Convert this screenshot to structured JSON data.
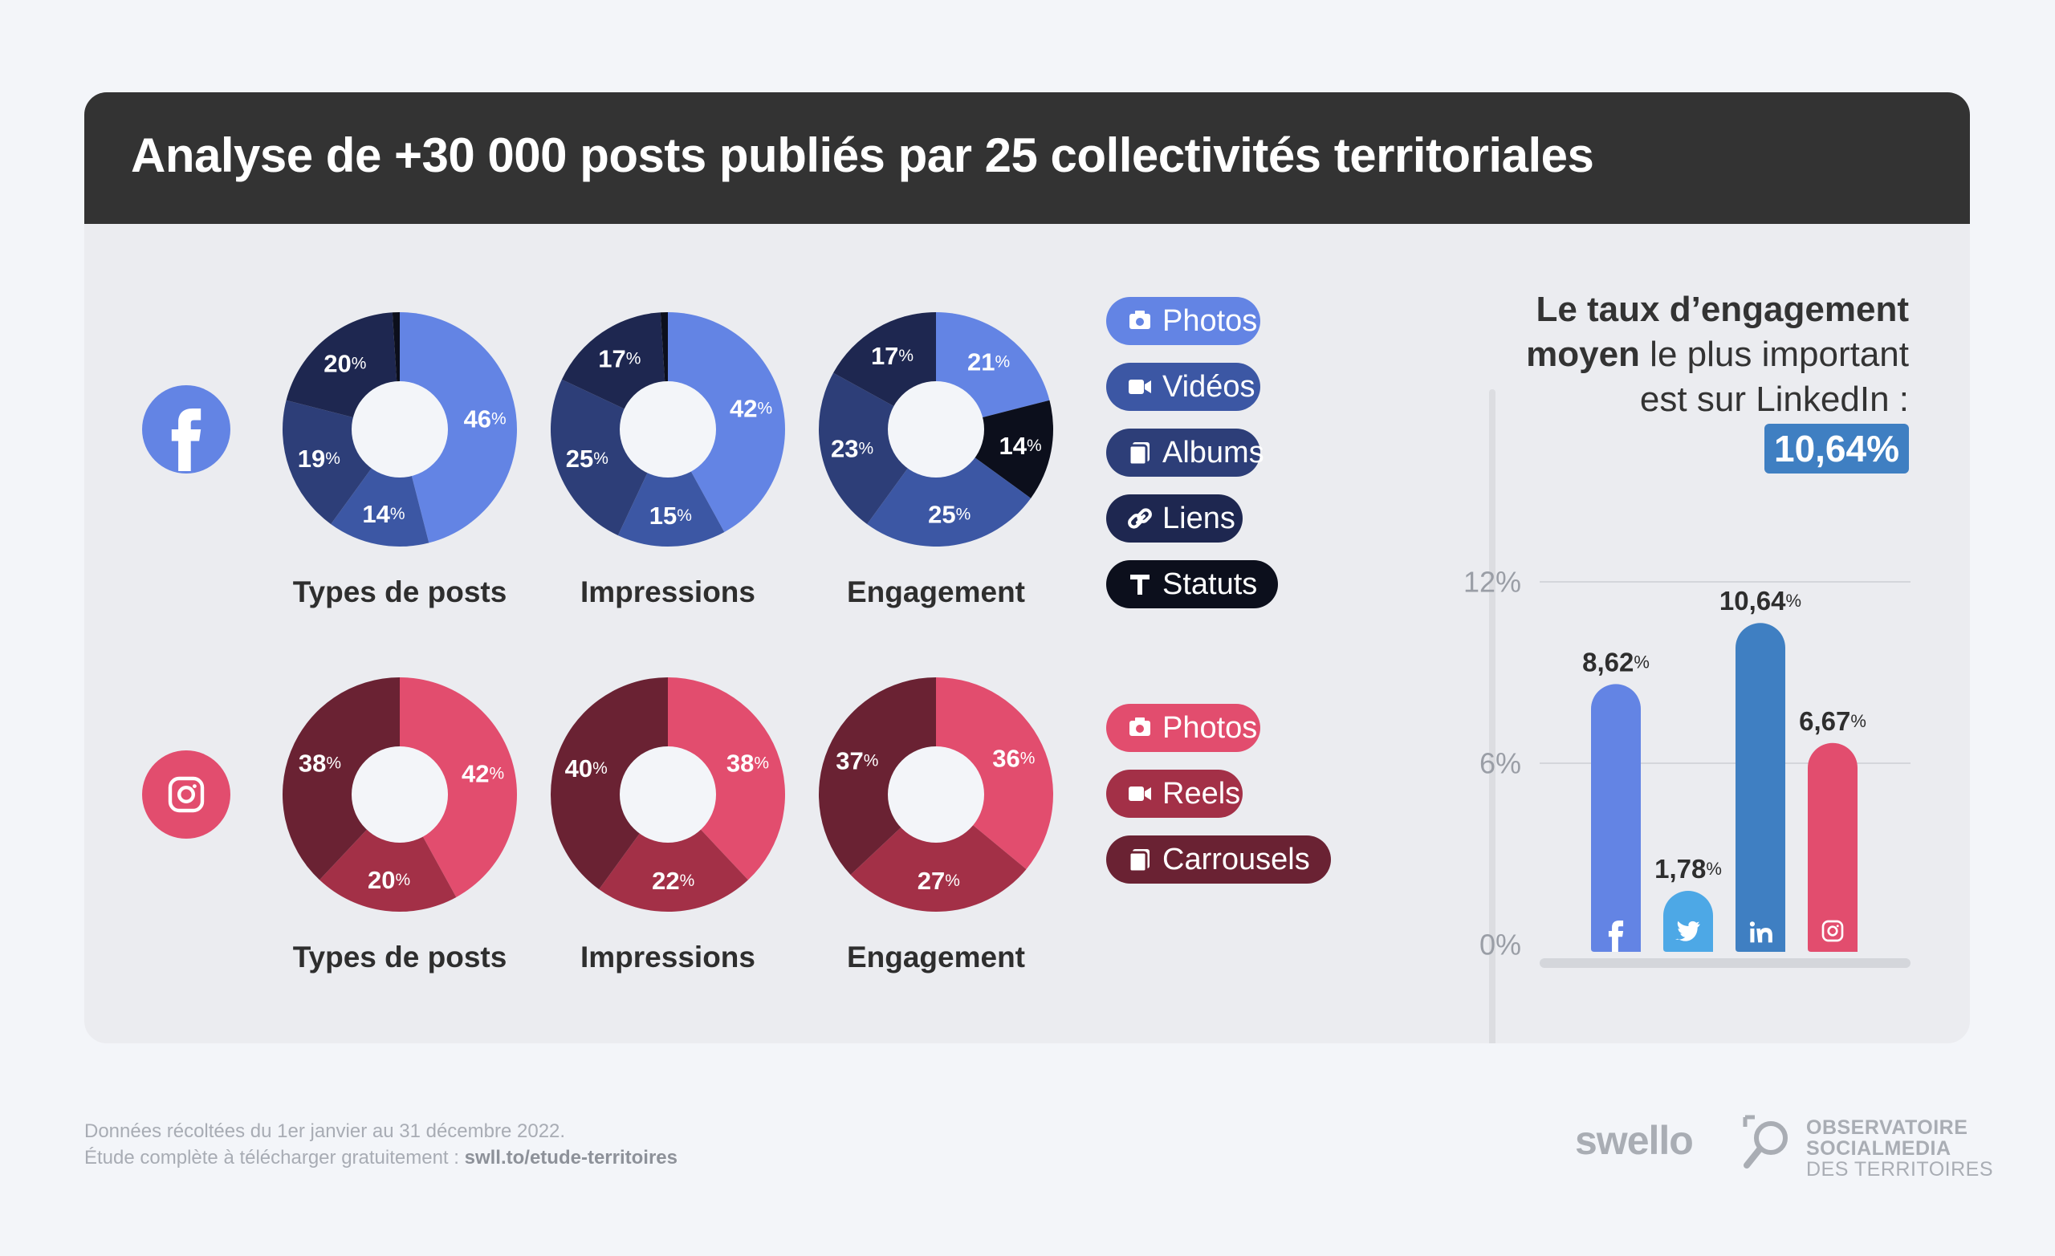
{
  "title": "Analyse de +30 000 posts publiés par 25 collectivités territoriales",
  "colors": {
    "fb_primary": "#6384e4",
    "fb_2": "#3c57a4",
    "fb_3": "#2d3e78",
    "fb_4": "#1e2750",
    "fb_5": "#0c0f1c",
    "ig_primary": "#e24d6e",
    "ig_2": "#a33047",
    "ig_3": "#6a2233",
    "twitter": "#4da8e6",
    "linkedin": "#3f7fc2"
  },
  "icons": [
    "facebook-icon",
    "instagram-icon",
    "twitter-icon",
    "linkedin-icon",
    "camera-icon",
    "video-icon",
    "album-icon",
    "link-icon",
    "text-icon",
    "search-icon"
  ],
  "chart_data": [
    {
      "type": "pie",
      "network": "facebook",
      "title": "Types de posts",
      "labels": [
        "Photos",
        "Vidéos",
        "Albums",
        "Liens",
        "Statuts"
      ],
      "values": [
        46,
        14,
        19,
        20,
        1
      ],
      "value_labels": [
        "46",
        "14",
        "19",
        "20",
        ""
      ],
      "unit": "%"
    },
    {
      "type": "pie",
      "network": "facebook",
      "title": "Impressions",
      "labels": [
        "Photos",
        "Vidéos",
        "Albums",
        "Liens",
        "Statuts"
      ],
      "values": [
        42,
        15,
        25,
        17,
        1
      ],
      "value_labels": [
        "42",
        "15",
        "25",
        "17",
        ""
      ],
      "unit": "%"
    },
    {
      "type": "pie",
      "network": "facebook",
      "title": "Engagement",
      "labels": [
        "Photos",
        "Statuts",
        "Vidéos",
        "Albums",
        "Liens"
      ],
      "values": [
        21,
        14,
        25,
        23,
        17
      ],
      "value_labels": [
        "21",
        "14",
        "25",
        "23",
        "17"
      ],
      "unit": "%"
    },
    {
      "type": "pie",
      "network": "instagram",
      "title": "Types de posts",
      "labels": [
        "Photos",
        "Reels",
        "Carrousels"
      ],
      "values": [
        42,
        20,
        38
      ],
      "value_labels": [
        "42",
        "20",
        "38"
      ],
      "unit": "%"
    },
    {
      "type": "pie",
      "network": "instagram",
      "title": "Impressions",
      "labels": [
        "Photos",
        "Reels",
        "Carrousels"
      ],
      "values": [
        38,
        22,
        40
      ],
      "value_labels": [
        "38",
        "22",
        "40"
      ],
      "unit": "%"
    },
    {
      "type": "pie",
      "network": "instagram",
      "title": "Engagement",
      "labels": [
        "Photos",
        "Reels",
        "Carrousels"
      ],
      "values": [
        36,
        27,
        37
      ],
      "value_labels": [
        "36",
        "27",
        "37"
      ],
      "unit": "%"
    },
    {
      "type": "bar",
      "title": "Taux d'engagement moyen",
      "categories": [
        "Facebook",
        "Twitter",
        "LinkedIn",
        "Instagram"
      ],
      "values": [
        8.62,
        1.78,
        10.64,
        6.67
      ],
      "value_labels": [
        "8,62",
        "1,78",
        "10,64",
        "6,67"
      ],
      "unit": "%",
      "y_ticks": [
        "12%",
        "6%",
        "0%"
      ],
      "ylim": [
        0,
        12
      ],
      "grid": true
    }
  ],
  "legend_facebook": [
    {
      "label": "Photos",
      "icon": "camera-icon"
    },
    {
      "label": "Vidéos",
      "icon": "video-icon"
    },
    {
      "label": "Albums",
      "icon": "album-icon"
    },
    {
      "label": "Liens",
      "icon": "link-icon"
    },
    {
      "label": "Statuts",
      "icon": "text-icon"
    }
  ],
  "legend_instagram": [
    {
      "label": "Photos",
      "icon": "camera-icon"
    },
    {
      "label": "Reels",
      "icon": "video-icon"
    },
    {
      "label": "Carrousels",
      "icon": "album-icon"
    }
  ],
  "headline": {
    "bold1": "Le taux d’engagement",
    "bold2": "moyen",
    "rest2": " le plus important",
    "line3": "est sur LinkedIn :",
    "value": "10,64%"
  },
  "footer": {
    "line1": "Données récoltées du 1er janvier au 31 décembre 2022.",
    "line2_prefix": "Étude complète à télécharger gratuitement : ",
    "line2_link": "swll.to/etude-territoires"
  },
  "brands": {
    "swello": "swello",
    "obs1": "OBSERVATOIRE",
    "obs2": "SOCIALMEDIA",
    "obs3": "DES TERRITOIRES"
  }
}
